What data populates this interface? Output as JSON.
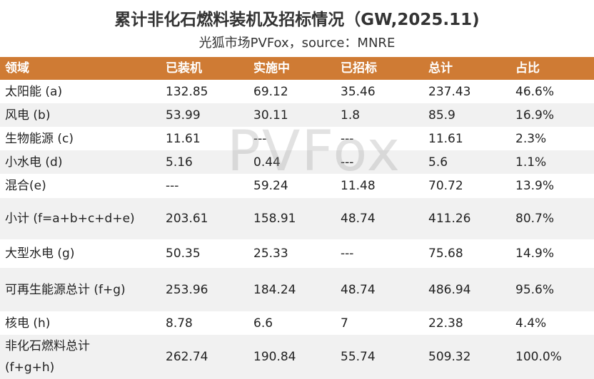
{
  "header": {
    "title": "累计非化石燃料装机及招标情况（GW,2025.11)",
    "subtitle": "光狐市场PVFox，source：MNRE"
  },
  "watermark": "PVFox",
  "table": {
    "columns": [
      "领域",
      "已装机",
      "实施中",
      "已招标",
      "总计",
      "占比"
    ],
    "rows": [
      [
        "太阳能 (a)",
        "132.85",
        "69.12",
        "35.46",
        "237.43",
        "46.6%"
      ],
      [
        "风电 (b)",
        "53.99",
        "30.11",
        "1.8",
        "85.9",
        "16.9%"
      ],
      [
        "生物能源 (c)",
        "11.61",
        "---",
        "---",
        "11.61",
        "2.3%"
      ],
      [
        "小水电 (d)",
        "5.16",
        "0.44",
        "---",
        "5.6",
        "1.1%"
      ],
      [
        "混合(e)",
        "---",
        "59.24",
        "11.48",
        "70.72",
        "13.9%"
      ],
      [
        "小计 (f=a+b+c+d+e)",
        "203.61",
        "158.91",
        "48.74",
        "411.26",
        "80.7%"
      ],
      [
        "大型水电 (g)",
        "50.35",
        "25.33",
        "---",
        "75.68",
        "14.9%"
      ],
      [
        "可再生能源总计 (f+g)",
        "253.96",
        "184.24",
        "48.74",
        "486.94",
        "95.6%"
      ],
      [
        "核电 (h)",
        "8.78",
        "6.6",
        "7",
        "22.38",
        "4.4%"
      ],
      [
        "非化石燃料总计\n(f+g+h)",
        "262.74",
        "190.84",
        "55.74",
        "509.32",
        "100.0%"
      ]
    ]
  }
}
